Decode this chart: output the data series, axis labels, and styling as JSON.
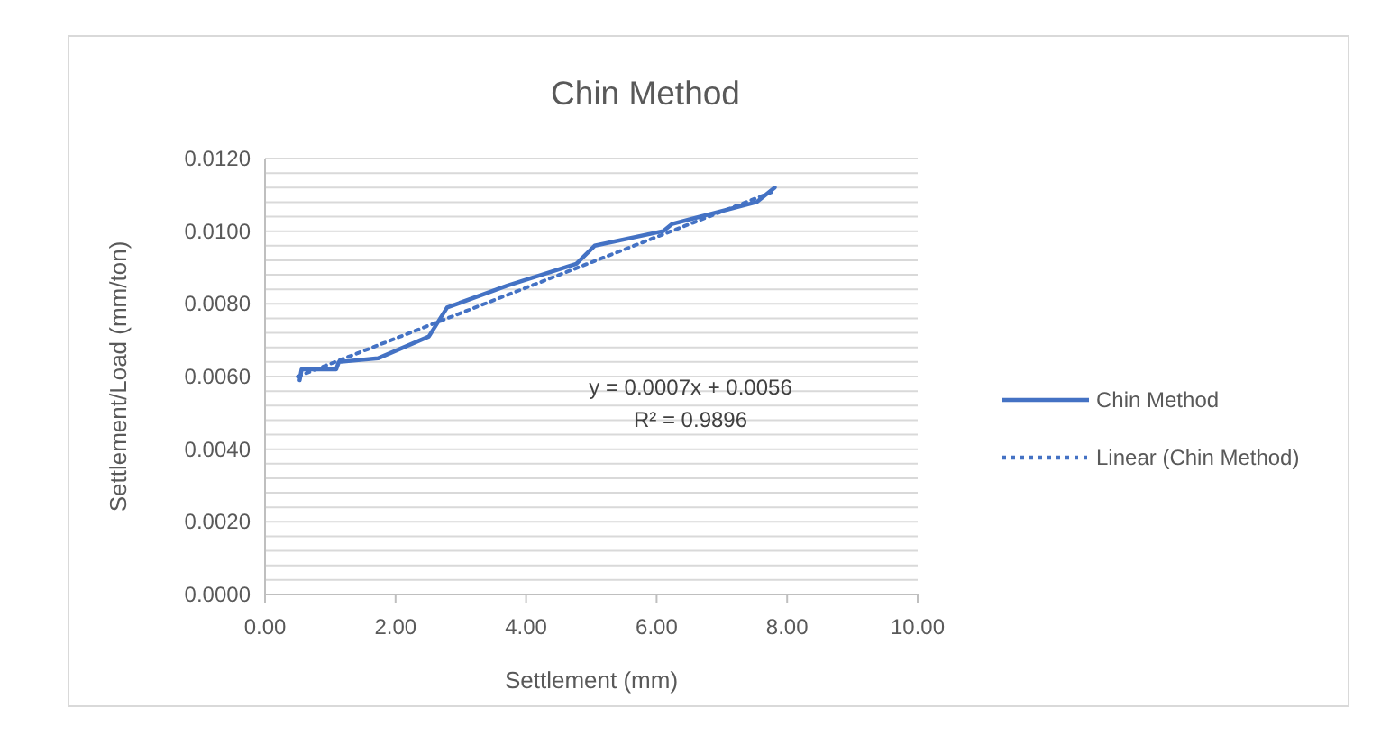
{
  "chart_data": {
    "type": "line",
    "title": "Chin Method",
    "xlabel": "Settlement (mm)",
    "ylabel": "Settlement/Load (mm/ton)",
    "xlim": [
      0,
      10
    ],
    "xticks": [
      {
        "value": 0,
        "label": "0.00"
      },
      {
        "value": 2,
        "label": "2.00"
      },
      {
        "value": 4,
        "label": "4.00"
      },
      {
        "value": 6,
        "label": "6.00"
      },
      {
        "value": 8,
        "label": "8.00"
      },
      {
        "value": 10,
        "label": "10.00"
      }
    ],
    "ylim": [
      0,
      0.012
    ],
    "yticks": [
      {
        "value": 0,
        "label": "0.0000"
      },
      {
        "value": 0.0004,
        "label": null
      },
      {
        "value": 0.0008,
        "label": null
      },
      {
        "value": 0.0012,
        "label": null
      },
      {
        "value": 0.0016,
        "label": null
      },
      {
        "value": 0.002,
        "label": "0.0020"
      },
      {
        "value": 0.0024,
        "label": null
      },
      {
        "value": 0.0028,
        "label": null
      },
      {
        "value": 0.0032,
        "label": null
      },
      {
        "value": 0.0036,
        "label": null
      },
      {
        "value": 0.004,
        "label": "0.0040"
      },
      {
        "value": 0.0044,
        "label": null
      },
      {
        "value": 0.0048,
        "label": null
      },
      {
        "value": 0.0052,
        "label": null
      },
      {
        "value": 0.0056,
        "label": null
      },
      {
        "value": 0.006,
        "label": "0.0060"
      },
      {
        "value": 0.0064,
        "label": null
      },
      {
        "value": 0.0068,
        "label": null
      },
      {
        "value": 0.0072,
        "label": null
      },
      {
        "value": 0.0076,
        "label": null
      },
      {
        "value": 0.008,
        "label": "0.0080"
      },
      {
        "value": 0.0084,
        "label": null
      },
      {
        "value": 0.0088,
        "label": null
      },
      {
        "value": 0.0092,
        "label": null
      },
      {
        "value": 0.0096,
        "label": null
      },
      {
        "value": 0.01,
        "label": "0.0100"
      },
      {
        "value": 0.0104,
        "label": null
      },
      {
        "value": 0.0108,
        "label": null
      },
      {
        "value": 0.0112,
        "label": null
      },
      {
        "value": 0.0116,
        "label": null
      },
      {
        "value": 0.012,
        "label": "0.0120"
      }
    ],
    "grid": "y",
    "legend": "right",
    "marker": "none",
    "series": [
      {
        "name": "Chin Method",
        "color": "#4472c4",
        "line_style": "solid",
        "x": [
          0.53,
          0.56,
          1.09,
          1.13,
          1.73,
          2.51,
          2.79,
          3.71,
          4.77,
          5.05,
          6.1,
          6.24,
          7.53,
          7.81
        ],
        "values": [
          0.0059,
          0.0062,
          0.0062,
          0.0064,
          0.0065,
          0.0071,
          0.0079,
          0.0085,
          0.0091,
          0.0096,
          0.01,
          0.0102,
          0.0108,
          0.0112
        ]
      },
      {
        "name": "Linear (Chin Method)",
        "color": "#4472c4",
        "line_style": "dotted",
        "x": [
          0.5,
          7.8
        ],
        "values": [
          0.006,
          0.0111
        ]
      }
    ],
    "annotations": [
      "y = 0.0007x + 0.0056",
      "R² = 0.9896"
    ]
  }
}
